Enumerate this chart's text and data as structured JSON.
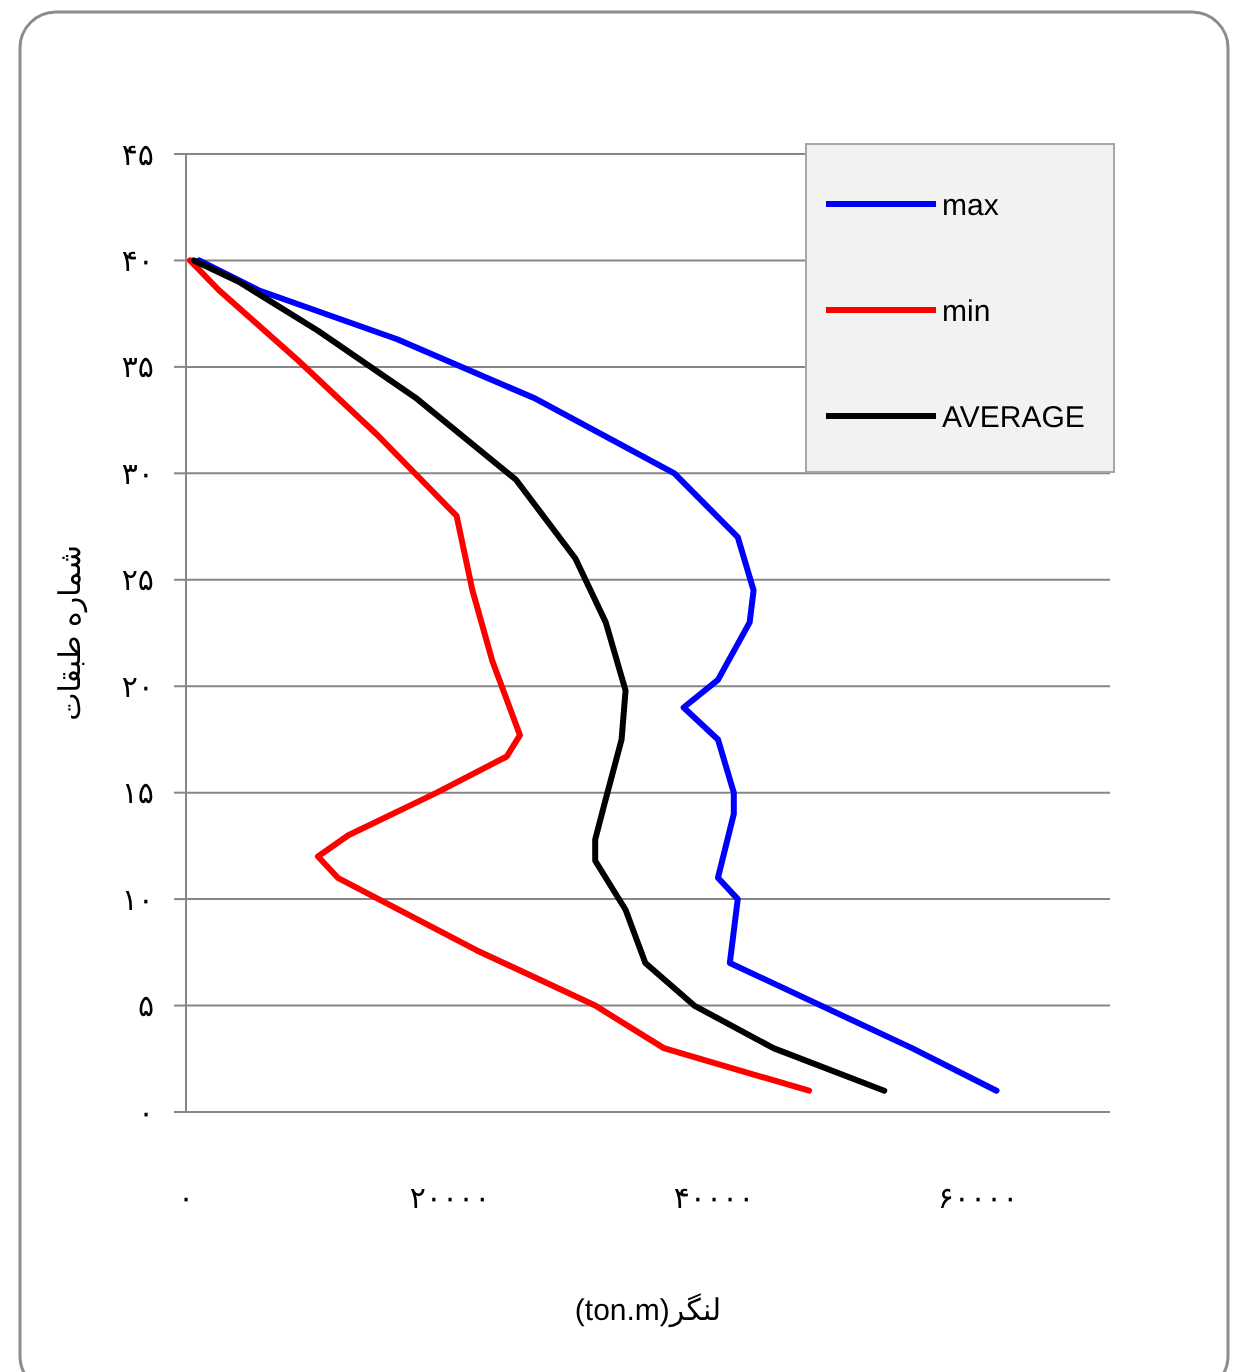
{
  "chart_data": {
    "type": "line",
    "xlabel": "لنگر(ton.m)",
    "ylabel": "شماره طبقات",
    "xlim": [
      0,
      70000
    ],
    "xticks": [
      {
        "value": 0,
        "label": "۰"
      },
      {
        "value": 20000,
        "label": "۲۰۰۰۰"
      },
      {
        "value": 40000,
        "label": "۴۰۰۰۰"
      },
      {
        "value": 60000,
        "label": "۶۰۰۰۰"
      }
    ],
    "ylim": [
      0,
      45
    ],
    "yticks": [
      {
        "value": 0,
        "label": "۰"
      },
      {
        "value": 5,
        "label": "۵"
      },
      {
        "value": 10,
        "label": "۱۰"
      },
      {
        "value": 15,
        "label": "۱۵"
      },
      {
        "value": 20,
        "label": "۲۰"
      },
      {
        "value": 25,
        "label": "۲۵"
      },
      {
        "value": 30,
        "label": "۳۰"
      },
      {
        "value": 35,
        "label": "۳۵"
      },
      {
        "value": 40,
        "label": "۴۰"
      },
      {
        "value": 45,
        "label": "۴۵"
      }
    ],
    "grid": "y",
    "legend": "top right",
    "marker": "none",
    "line_style": "solid",
    "series": [
      {
        "name": "max",
        "color": "#0000ff",
        "x": [
          61400,
          55000,
          41200,
          41800,
          40300,
          41500,
          41500,
          40300,
          37700,
          40300,
          42700,
          43000,
          41800,
          37000,
          26500,
          16000,
          5500,
          1000
        ],
        "values": [
          1,
          3,
          7,
          10,
          11,
          14,
          15,
          17.5,
          19,
          20.3,
          23,
          24.5,
          27,
          30,
          33.5,
          36.3,
          38.6,
          40
        ]
      },
      {
        "name": "min",
        "color": "#ff0000",
        "x": [
          47200,
          36200,
          31000,
          22000,
          11500,
          10000,
          12300,
          19000,
          24300,
          25300,
          23200,
          21700,
          20500,
          14500,
          8500,
          2500,
          300
        ],
        "values": [
          1,
          3,
          5,
          7.6,
          11,
          12,
          13,
          15,
          16.7,
          17.7,
          21.2,
          24.5,
          28,
          31.8,
          35.3,
          38.6,
          40
        ]
      },
      {
        "name": "AVERAGE",
        "color": "#000000",
        "x": [
          52900,
          44500,
          38500,
          34800,
          33300,
          31000,
          31000,
          31800,
          33000,
          33300,
          31800,
          29500,
          25000,
          17500,
          10000,
          4000,
          600
        ],
        "values": [
          1,
          3,
          5,
          7,
          9.5,
          11.8,
          12.8,
          14.7,
          17.5,
          19.8,
          23,
          26,
          29.7,
          33.5,
          36.7,
          39,
          40
        ]
      }
    ]
  }
}
